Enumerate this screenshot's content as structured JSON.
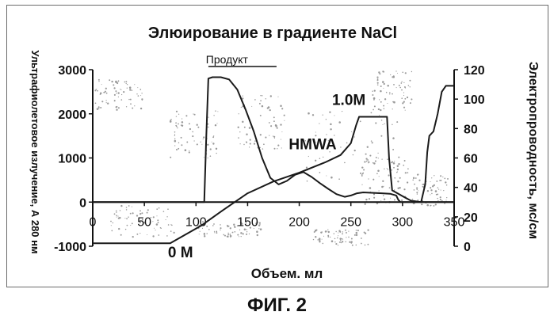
{
  "figure_caption": "ФИГ. 2",
  "chart_data": {
    "type": "line",
    "title": "Элюирование в градиенте NaCl",
    "xlabel": "Объем. мл",
    "ylabel_left": "Ультрафиолетовое излучение, А 280 нм",
    "ylabel_right": "Электропроводность, мс/см",
    "xlim": [
      0,
      350
    ],
    "ylim_left": [
      -1000,
      3000
    ],
    "ylim_right": [
      0,
      120
    ],
    "x_ticks": [
      0,
      50,
      100,
      150,
      200,
      250,
      300,
      350
    ],
    "y_ticks_left": [
      -1000,
      0,
      1000,
      2000,
      3000
    ],
    "y_ticks_right": [
      0,
      20,
      40,
      60,
      80,
      100,
      120
    ],
    "grid": false,
    "annotations": [
      {
        "text": "Продукт",
        "x": 130,
        "y": 3000,
        "axis": "left",
        "range": [
          112,
          178
        ]
      },
      {
        "text": "1.0M",
        "x": 248,
        "y": 2200,
        "axis": "left"
      },
      {
        "text": "HMWA",
        "x": 213,
        "y": 1200,
        "axis": "left"
      },
      {
        "text": "0 M",
        "x": 85,
        "y": -1250,
        "axis": "left"
      }
    ],
    "series": [
      {
        "axis": "left",
        "color": "#1a1a1a",
        "points": [
          [
            0,
            0
          ],
          [
            108,
            0
          ],
          [
            110,
            1500
          ],
          [
            112,
            2800
          ],
          [
            116,
            2830
          ],
          [
            124,
            2830
          ],
          [
            132,
            2780
          ],
          [
            140,
            2550
          ],
          [
            148,
            2100
          ],
          [
            156,
            1600
          ],
          [
            164,
            1000
          ],
          [
            172,
            550
          ],
          [
            180,
            400
          ],
          [
            188,
            480
          ],
          [
            196,
            620
          ],
          [
            204,
            680
          ],
          [
            212,
            570
          ],
          [
            220,
            430
          ],
          [
            228,
            300
          ],
          [
            236,
            180
          ],
          [
            244,
            120
          ],
          [
            250,
            150
          ],
          [
            256,
            200
          ],
          [
            262,
            220
          ],
          [
            270,
            210
          ],
          [
            280,
            200
          ],
          [
            288,
            190
          ],
          [
            294,
            150
          ],
          [
            296,
            50
          ],
          [
            298,
            0
          ],
          [
            350,
            0
          ]
        ]
      },
      {
        "axis": "right",
        "color": "#1a1a1a",
        "points": [
          [
            0,
            2
          ],
          [
            75,
            2
          ],
          [
            105,
            14
          ],
          [
            125,
            24
          ],
          [
            150,
            36
          ],
          [
            175,
            44
          ],
          [
            200,
            50
          ],
          [
            225,
            57
          ],
          [
            240,
            62
          ],
          [
            250,
            70
          ],
          [
            255,
            82
          ],
          [
            258,
            88
          ],
          [
            262,
            88
          ],
          [
            285,
            88
          ],
          [
            287,
            60
          ],
          [
            290,
            38
          ],
          [
            300,
            34
          ],
          [
            308,
            31
          ],
          [
            318,
            30
          ],
          [
            322,
            42
          ],
          [
            324,
            64
          ],
          [
            326,
            75
          ],
          [
            330,
            78
          ],
          [
            334,
            90
          ],
          [
            338,
            105
          ],
          [
            342,
            109
          ],
          [
            350,
            109
          ]
        ]
      }
    ]
  }
}
